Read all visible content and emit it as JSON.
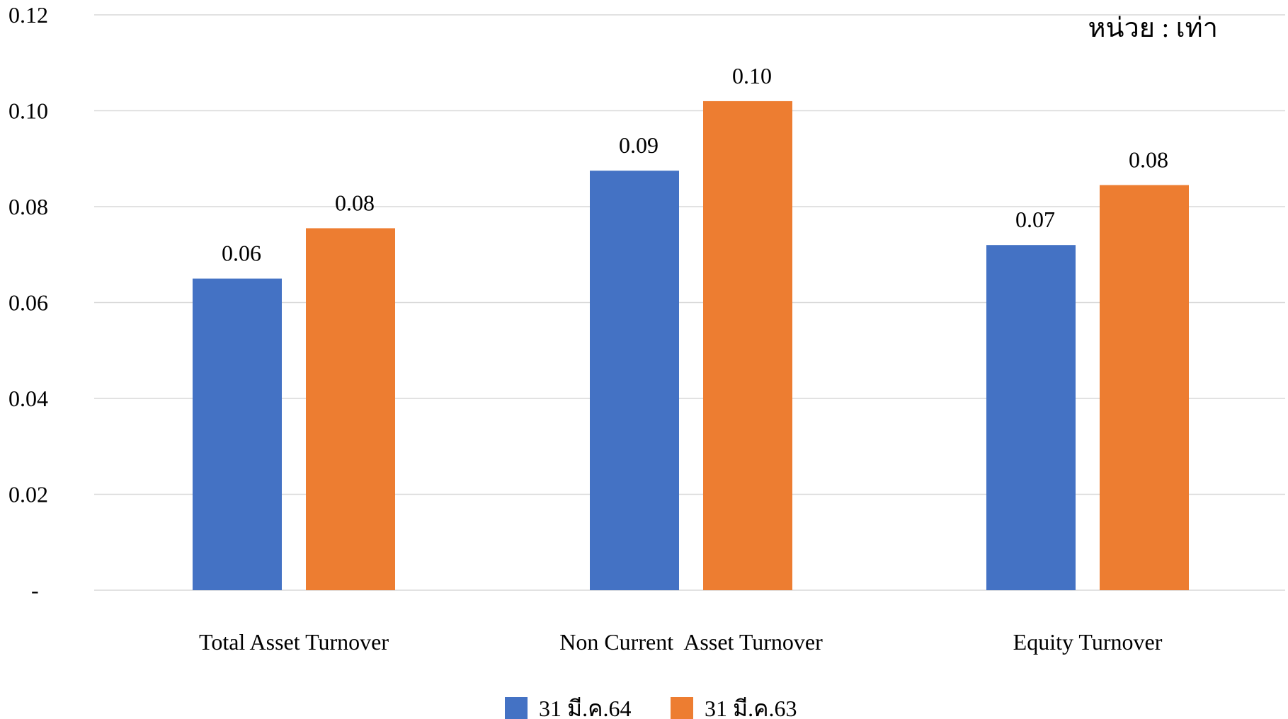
{
  "chart_data": {
    "type": "bar",
    "unit_label": "หน่วย : เท่า",
    "categories": [
      "Total Asset Turnover",
      "Non Current  Asset Turnover",
      "Equity Turnover"
    ],
    "series": [
      {
        "name": "31 มี.ค.64",
        "color": "#4472C4",
        "values": [
          0.065,
          0.0875,
          0.072
        ],
        "data_labels": [
          "0.06",
          "0.09",
          "0.07"
        ]
      },
      {
        "name": "31 มี.ค.63",
        "color": "#ED7D31",
        "values": [
          0.0755,
          0.102,
          0.0845
        ],
        "data_labels": [
          "0.08",
          "0.10",
          "0.08"
        ]
      }
    ],
    "y_ticks": [
      {
        "value": 0,
        "label": "-"
      },
      {
        "value": 0.02,
        "label": "0.02"
      },
      {
        "value": 0.04,
        "label": "0.04"
      },
      {
        "value": 0.06,
        "label": "0.06"
      },
      {
        "value": 0.08,
        "label": "0.08"
      },
      {
        "value": 0.1,
        "label": "0.10"
      },
      {
        "value": 0.12,
        "label": "0.12"
      }
    ],
    "ylim": [
      0,
      0.12
    ],
    "grid": true,
    "gridline_color": "#D9D9D9",
    "legend_position": "bottom"
  }
}
